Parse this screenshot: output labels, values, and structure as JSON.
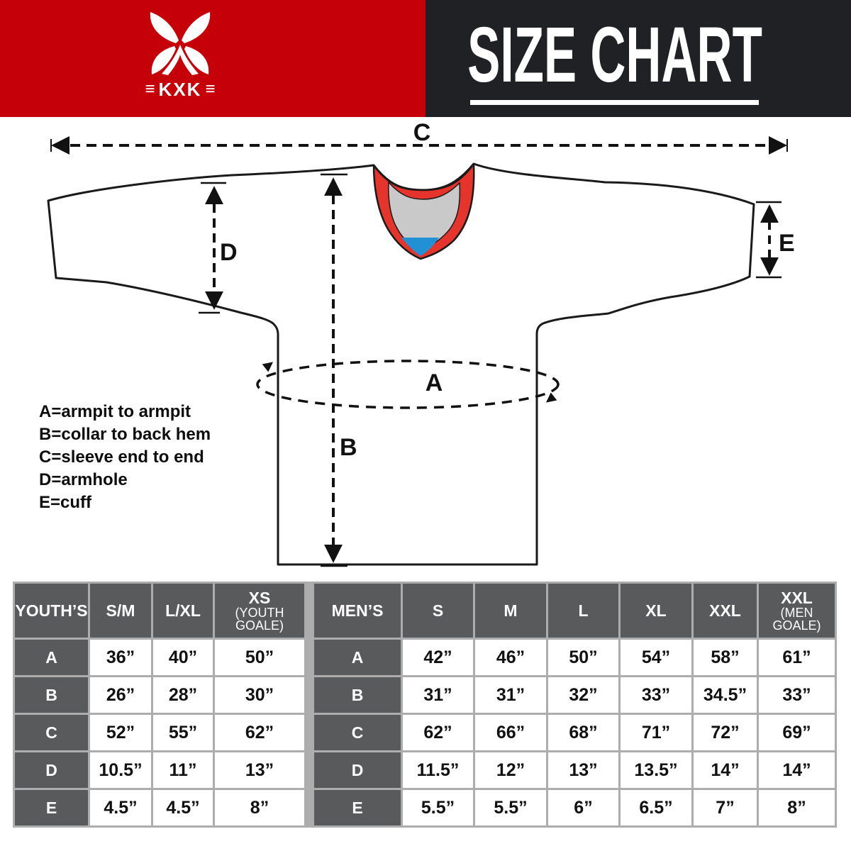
{
  "header": {
    "brand": {
      "wordmark": "KXK",
      "side_bars": "≡"
    },
    "title": "SIZE CHART",
    "colors": {
      "red": "#c60009",
      "black": "#202124"
    }
  },
  "diagram": {
    "labels": {
      "A": "A",
      "B": "B",
      "C": "C",
      "D": "D",
      "E": "E"
    },
    "colors": {
      "collar_red": "#e5342b",
      "collar_gray": "#c9c9c9",
      "collar_blue": "#2191d4",
      "outline": "#1a1a1a"
    }
  },
  "legend": {
    "lines": [
      "A=armpit to armpit",
      "B=collar to back hem",
      "C=sleeve end to end",
      "D=armhole",
      "E=cuff"
    ]
  },
  "table": {
    "colors": {
      "dark": "#595a5c",
      "grid": "#adadad"
    },
    "header_cells": [
      {
        "main": "YOUTH’S"
      },
      {
        "main": "S/M"
      },
      {
        "main": "L/XL"
      },
      {
        "main": "XS",
        "sub": "(YOUTH GOALE)"
      },
      {
        "spacer": true
      },
      {
        "main": "MEN’S"
      },
      {
        "main": "S"
      },
      {
        "main": "M"
      },
      {
        "main": "L"
      },
      {
        "main": "XL"
      },
      {
        "main": "XXL"
      },
      {
        "main": "XXL",
        "sub": "(MEN GOALE)"
      }
    ],
    "rows": [
      {
        "label_youth": "A",
        "youth": [
          "36”",
          "40”",
          "50”"
        ],
        "label_men": "A",
        "men": [
          "42”",
          "46”",
          "50”",
          "54”",
          "58”",
          "61”"
        ]
      },
      {
        "label_youth": "B",
        "youth": [
          "26”",
          "28”",
          "30”"
        ],
        "label_men": "B",
        "men": [
          "31”",
          "31”",
          "32”",
          "33”",
          "34.5”",
          "33”"
        ]
      },
      {
        "label_youth": "C",
        "youth": [
          "52”",
          "55”",
          "62”"
        ],
        "label_men": "C",
        "men": [
          "62”",
          "66”",
          "68”",
          "71”",
          "72”",
          "69”"
        ]
      },
      {
        "label_youth": "D",
        "youth": [
          "10.5”",
          "11”",
          "13”"
        ],
        "label_men": "D",
        "men": [
          "11.5”",
          "12”",
          "13”",
          "13.5”",
          "14”",
          "14”"
        ]
      },
      {
        "label_youth": "E",
        "youth": [
          "4.5”",
          "4.5”",
          "8”"
        ],
        "label_men": "E",
        "men": [
          "5.5”",
          "5.5”",
          "6”",
          "6.5”",
          "7”",
          "8”"
        ]
      }
    ]
  }
}
